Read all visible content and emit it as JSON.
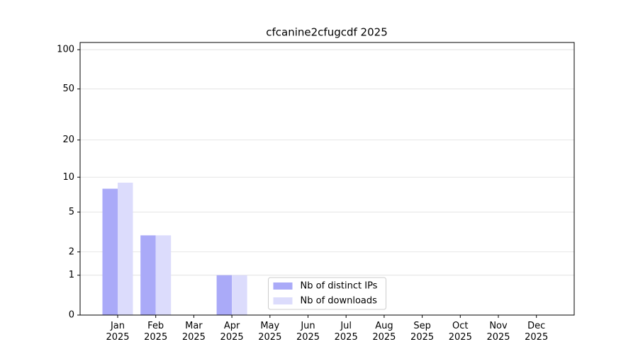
{
  "chart_data": {
    "type": "bar",
    "title": "cfcanine2cfugcdf 2025",
    "categories": [
      "Jan\n2025",
      "Feb\n2025",
      "Mar\n2025",
      "Apr\n2025",
      "May\n2025",
      "Jun\n2025",
      "Jul\n2025",
      "Aug\n2025",
      "Sep\n2025",
      "Oct\n2025",
      "Nov\n2025",
      "Dec\n2025"
    ],
    "series": [
      {
        "name": "Nb of distinct IPs",
        "color": "#aaaaf8",
        "values": [
          8,
          3,
          0,
          1,
          0,
          0,
          0,
          0,
          0,
          0,
          0,
          0
        ]
      },
      {
        "name": "Nb of downloads",
        "color": "#dcdcfc",
        "values": [
          9,
          3,
          0,
          1,
          0,
          0,
          0,
          0,
          0,
          0,
          0,
          0
        ]
      }
    ],
    "yscale": "symlog",
    "ylim": [
      0,
      113.5
    ],
    "yticks": [
      0,
      1,
      2,
      5,
      10,
      20,
      50,
      100
    ],
    "grid": true,
    "legend": "lower center"
  }
}
